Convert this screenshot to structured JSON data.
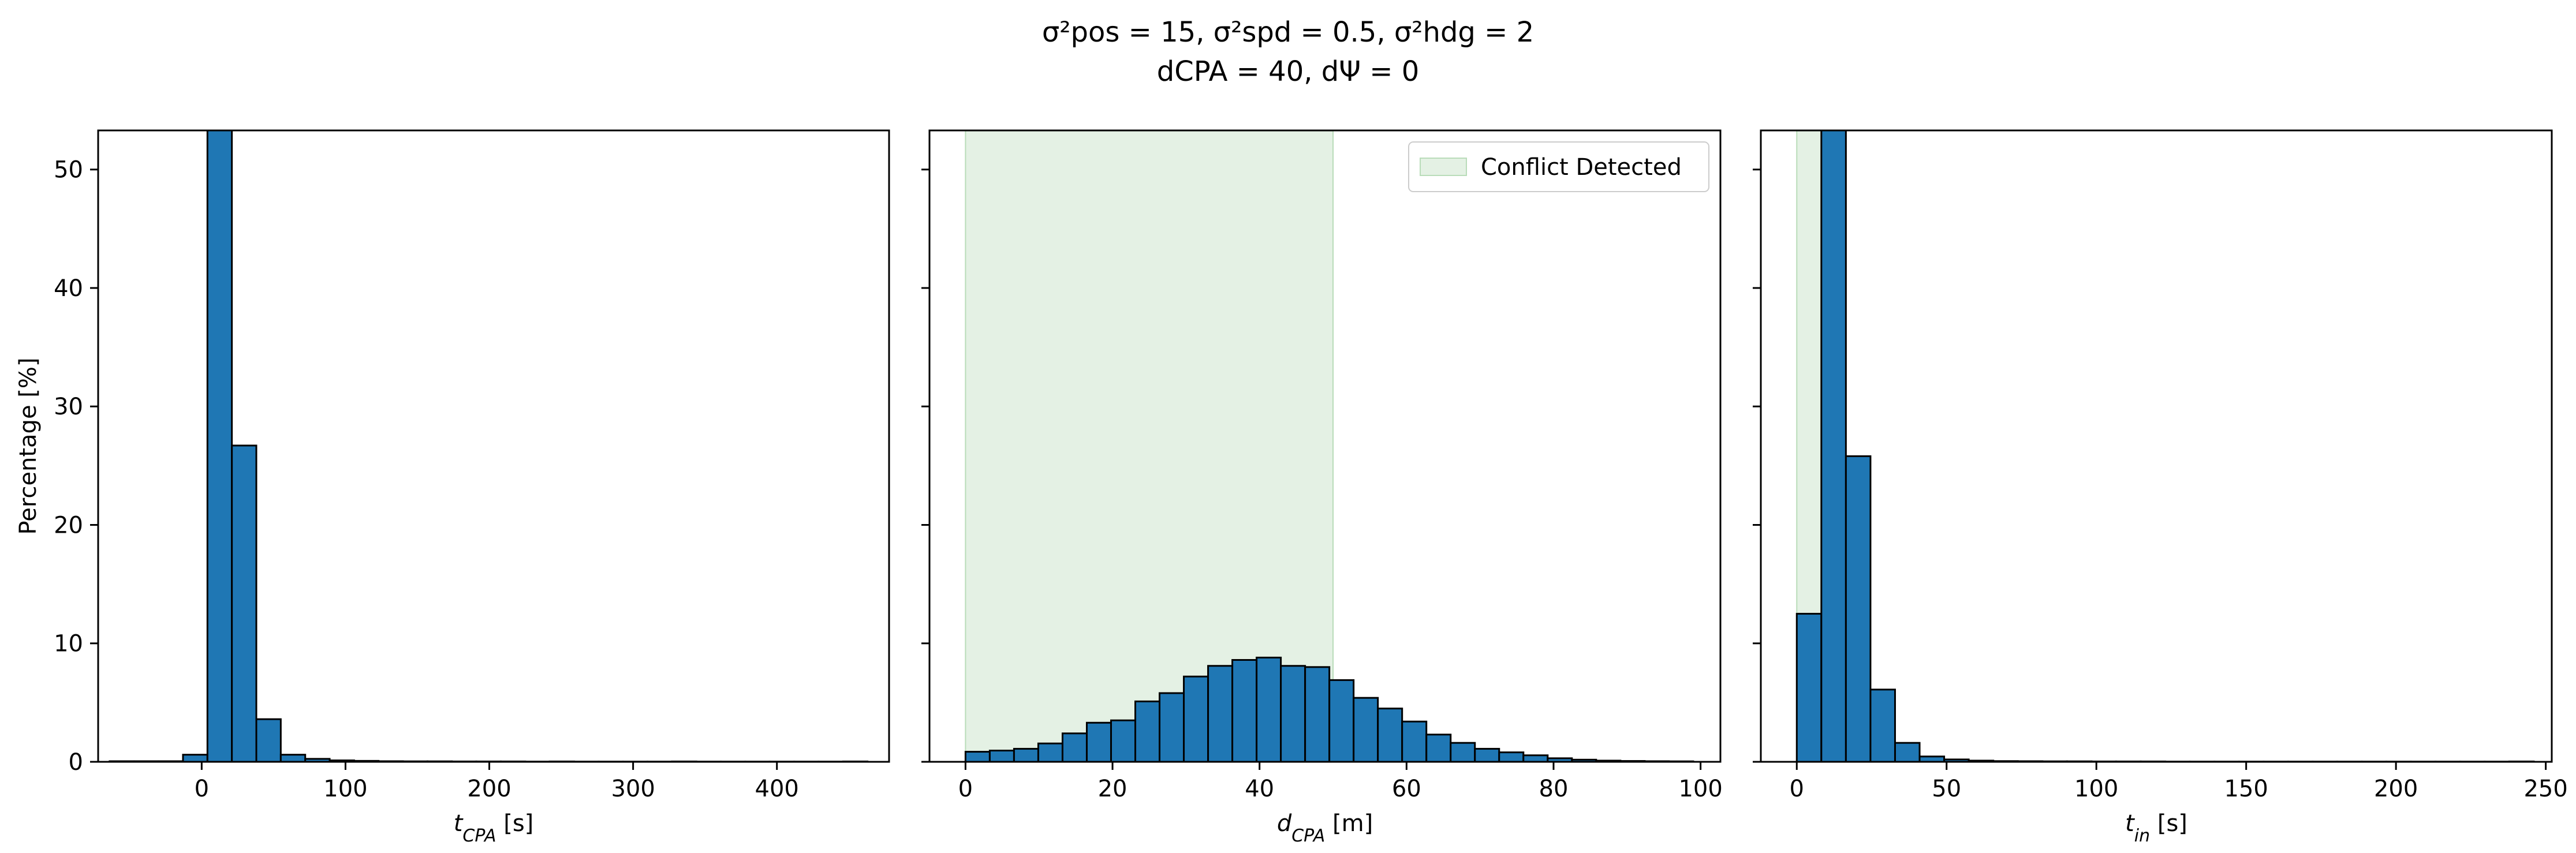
{
  "figure": {
    "title_line1": "σ²pos = 15, σ²spd = 0.5, σ²hdg = 2",
    "title_line2": "dCPA = 40, dΨ = 0",
    "shared_y_label": "Percentage [%]"
  },
  "chart_data": [
    {
      "type": "bar",
      "xlabel": "t_CPA [s]",
      "ylabel": "Percentage [%]",
      "xlim": [
        -72,
        478
      ],
      "ylim": [
        0,
        53.3
      ],
      "xticks": [
        0,
        100,
        200,
        300,
        400
      ],
      "yticks": [
        0,
        10,
        20,
        30,
        40,
        50
      ],
      "bin_width": 17,
      "bins": [
        {
          "x0": -64,
          "x1": -47,
          "value": 0.05
        },
        {
          "x0": -47,
          "x1": -30,
          "value": 0.05
        },
        {
          "x0": -30,
          "x1": -13,
          "value": 0.05
        },
        {
          "x0": -13,
          "x1": 4,
          "value": 0.6
        },
        {
          "x0": 4,
          "x1": 21,
          "value": 53.3
        },
        {
          "x0": 21,
          "x1": 38,
          "value": 26.7
        },
        {
          "x0": 38,
          "x1": 55,
          "value": 3.6
        },
        {
          "x0": 55,
          "x1": 72,
          "value": 0.6
        },
        {
          "x0": 72,
          "x1": 89,
          "value": 0.25
        },
        {
          "x0": 89,
          "x1": 106,
          "value": 0.12
        },
        {
          "x0": 106,
          "x1": 123,
          "value": 0.08
        },
        {
          "x0": 123,
          "x1": 140,
          "value": 0.05
        },
        {
          "x0": 140,
          "x1": 157,
          "value": 0.04
        },
        {
          "x0": 157,
          "x1": 174,
          "value": 0.04
        },
        {
          "x0": 174,
          "x1": 191,
          "value": 0.03
        },
        {
          "x0": 191,
          "x1": 208,
          "value": 0.03
        },
        {
          "x0": 208,
          "x1": 225,
          "value": 0.03
        },
        {
          "x0": 225,
          "x1": 242,
          "value": 0.02
        },
        {
          "x0": 242,
          "x1": 259,
          "value": 0.03
        },
        {
          "x0": 259,
          "x1": 276,
          "value": 0.02
        },
        {
          "x0": 276,
          "x1": 293,
          "value": 0.02
        },
        {
          "x0": 293,
          "x1": 310,
          "value": 0.02
        },
        {
          "x0": 310,
          "x1": 327,
          "value": 0.02
        },
        {
          "x0": 327,
          "x1": 344,
          "value": 0.03
        },
        {
          "x0": 344,
          "x1": 361,
          "value": 0.02
        },
        {
          "x0": 361,
          "x1": 378,
          "value": 0.02
        },
        {
          "x0": 378,
          "x1": 395,
          "value": 0.02
        },
        {
          "x0": 395,
          "x1": 412,
          "value": 0.02
        },
        {
          "x0": 412,
          "x1": 429,
          "value": 0.02
        },
        {
          "x0": 429,
          "x1": 446,
          "value": 0.02
        },
        {
          "x0": 446,
          "x1": 463,
          "value": 0.03
        }
      ]
    },
    {
      "type": "bar",
      "xlabel": "d_CPA [m]",
      "xlim": [
        -4.9,
        102.7
      ],
      "ylim": [
        0,
        53.3
      ],
      "xticks": [
        0,
        20,
        40,
        60,
        80,
        100
      ],
      "bin_width": 3.3,
      "shaded_region": {
        "x0": 0,
        "x1": 50,
        "color": "#e4f1e4",
        "edge": "#b9dcb9"
      },
      "legend": {
        "label": "Conflict Detected",
        "placement": "top-right"
      },
      "bins": [
        {
          "x0": 0.0,
          "x1": 3.3,
          "value": 0.85
        },
        {
          "x0": 3.3,
          "x1": 6.6,
          "value": 0.95
        },
        {
          "x0": 6.6,
          "x1": 9.9,
          "value": 1.1
        },
        {
          "x0": 9.9,
          "x1": 13.2,
          "value": 1.55
        },
        {
          "x0": 13.2,
          "x1": 16.5,
          "value": 2.4
        },
        {
          "x0": 16.5,
          "x1": 19.8,
          "value": 3.3
        },
        {
          "x0": 19.8,
          "x1": 23.1,
          "value": 3.5
        },
        {
          "x0": 23.1,
          "x1": 26.4,
          "value": 5.1
        },
        {
          "x0": 26.4,
          "x1": 29.7,
          "value": 5.8
        },
        {
          "x0": 29.7,
          "x1": 33.0,
          "value": 7.2
        },
        {
          "x0": 33.0,
          "x1": 36.3,
          "value": 8.1
        },
        {
          "x0": 36.3,
          "x1": 39.6,
          "value": 8.6
        },
        {
          "x0": 39.6,
          "x1": 42.9,
          "value": 8.8
        },
        {
          "x0": 42.9,
          "x1": 46.2,
          "value": 8.1
        },
        {
          "x0": 46.2,
          "x1": 49.5,
          "value": 8.0
        },
        {
          "x0": 49.5,
          "x1": 52.8,
          "value": 6.9
        },
        {
          "x0": 52.8,
          "x1": 56.1,
          "value": 5.4
        },
        {
          "x0": 56.1,
          "x1": 59.4,
          "value": 4.5
        },
        {
          "x0": 59.4,
          "x1": 62.7,
          "value": 3.4
        },
        {
          "x0": 62.7,
          "x1": 66.0,
          "value": 2.3
        },
        {
          "x0": 66.0,
          "x1": 69.3,
          "value": 1.6
        },
        {
          "x0": 69.3,
          "x1": 72.6,
          "value": 1.1
        },
        {
          "x0": 72.6,
          "x1": 75.9,
          "value": 0.8
        },
        {
          "x0": 75.9,
          "x1": 79.2,
          "value": 0.55
        },
        {
          "x0": 79.2,
          "x1": 82.5,
          "value": 0.3
        },
        {
          "x0": 82.5,
          "x1": 85.8,
          "value": 0.18
        },
        {
          "x0": 85.8,
          "x1": 89.1,
          "value": 0.1
        },
        {
          "x0": 89.1,
          "x1": 92.4,
          "value": 0.07
        },
        {
          "x0": 92.4,
          "x1": 95.7,
          "value": 0.05
        },
        {
          "x0": 95.7,
          "x1": 99.0,
          "value": 0.04
        }
      ]
    },
    {
      "type": "bar",
      "xlabel": "t_in [s]",
      "xlim": [
        -12,
        252
      ],
      "ylim": [
        0,
        53.3
      ],
      "xticks": [
        0,
        50,
        100,
        150,
        200,
        250
      ],
      "bin_width": 8.2,
      "shaded_region": {
        "x0": 0,
        "x1": 9,
        "color": "#e4f1e4",
        "edge": "#b9dcb9"
      },
      "bins": [
        {
          "x0": 0.0,
          "x1": 8.2,
          "value": 12.5
        },
        {
          "x0": 8.2,
          "x1": 16.4,
          "value": 53.3
        },
        {
          "x0": 16.4,
          "x1": 24.6,
          "value": 25.8
        },
        {
          "x0": 24.6,
          "x1": 32.8,
          "value": 6.1
        },
        {
          "x0": 32.8,
          "x1": 41.0,
          "value": 1.6
        },
        {
          "x0": 41.0,
          "x1": 49.2,
          "value": 0.45
        },
        {
          "x0": 49.2,
          "x1": 57.4,
          "value": 0.2
        },
        {
          "x0": 57.4,
          "x1": 65.6,
          "value": 0.1
        },
        {
          "x0": 65.6,
          "x1": 73.8,
          "value": 0.06
        },
        {
          "x0": 73.8,
          "x1": 82.0,
          "value": 0.05
        },
        {
          "x0": 82.0,
          "x1": 90.2,
          "value": 0.04
        },
        {
          "x0": 90.2,
          "x1": 98.4,
          "value": 0.04
        },
        {
          "x0": 98.4,
          "x1": 106.6,
          "value": 0.03
        },
        {
          "x0": 106.6,
          "x1": 114.8,
          "value": 0.03
        },
        {
          "x0": 114.8,
          "x1": 123.0,
          "value": 0.03
        },
        {
          "x0": 123.0,
          "x1": 131.2,
          "value": 0.02
        },
        {
          "x0": 131.2,
          "x1": 139.4,
          "value": 0.02
        },
        {
          "x0": 139.4,
          "x1": 147.6,
          "value": 0.02
        },
        {
          "x0": 147.6,
          "x1": 155.8,
          "value": 0.02
        },
        {
          "x0": 155.8,
          "x1": 164.0,
          "value": 0.02
        },
        {
          "x0": 164.0,
          "x1": 172.2,
          "value": 0.02
        },
        {
          "x0": 172.2,
          "x1": 180.4,
          "value": 0.02
        },
        {
          "x0": 180.4,
          "x1": 188.6,
          "value": 0.02
        },
        {
          "x0": 188.6,
          "x1": 196.8,
          "value": 0.02
        },
        {
          "x0": 196.8,
          "x1": 205.0,
          "value": 0.02
        },
        {
          "x0": 205.0,
          "x1": 213.2,
          "value": 0.02
        },
        {
          "x0": 213.2,
          "x1": 221.4,
          "value": 0.02
        },
        {
          "x0": 221.4,
          "x1": 229.6,
          "value": 0.02
        },
        {
          "x0": 229.6,
          "x1": 237.8,
          "value": 0.02
        },
        {
          "x0": 237.8,
          "x1": 246.0,
          "value": 0.03
        }
      ]
    }
  ],
  "colors": {
    "bar_fill": "#1f77b4",
    "bar_edge": "#000000",
    "axes": "#000000"
  }
}
